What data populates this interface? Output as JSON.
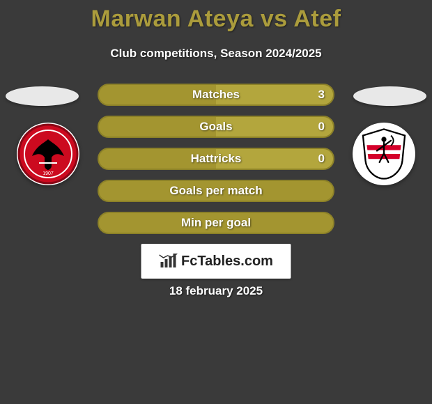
{
  "header": {
    "title": "Marwan Ateya vs Atef",
    "subtitle": "Club competitions, Season 2024/2025",
    "title_color": "#ab9c3c",
    "subtitle_color": "#ffffff"
  },
  "background_color": "#3a3a3a",
  "players": {
    "left": {
      "ellipse_color": "#e8e8e8"
    },
    "right": {
      "ellipse_color": "#e8e8e8"
    }
  },
  "clubs": {
    "left": {
      "name": "al-ahly",
      "bg": "#cc0a1f",
      "accent": "#ffffff",
      "detail": "#000000"
    },
    "right": {
      "name": "zamalek",
      "bg": "#ffffff",
      "accent": "#d4002a",
      "detail": "#000000"
    }
  },
  "stats": {
    "bar_border_color": "#8c8128",
    "bar_base_color": "#a39530",
    "bar_fill_color": "#b3a63d",
    "label_color": "#ffffff",
    "rows": [
      {
        "label": "Matches",
        "right_value": "3",
        "right_fill_pct": 50
      },
      {
        "label": "Goals",
        "right_value": "0",
        "right_fill_pct": 50
      },
      {
        "label": "Hattricks",
        "right_value": "0",
        "right_fill_pct": 50
      },
      {
        "label": "Goals per match",
        "right_value": "",
        "right_fill_pct": 0
      },
      {
        "label": "Min per goal",
        "right_value": "",
        "right_fill_pct": 0
      }
    ]
  },
  "branding": {
    "text": "FcTables.com",
    "icon_name": "bar-chart-icon",
    "bg": "#ffffff",
    "text_color": "#222222"
  },
  "footer": {
    "date": "18 february 2025",
    "color": "#ffffff"
  }
}
